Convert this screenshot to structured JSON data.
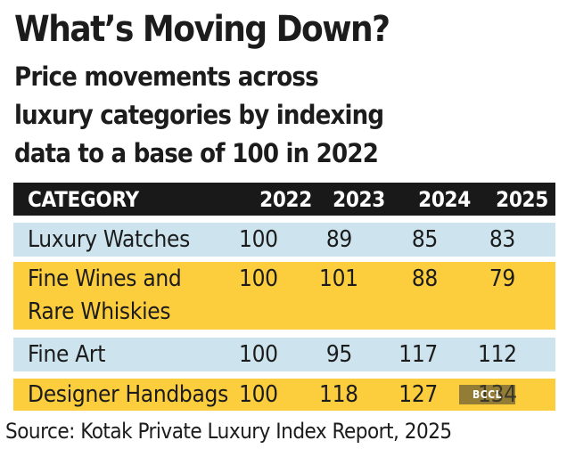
{
  "title": "What’s Moving Down?",
  "subtitle": "Price movements across\nluxury categories by indexing\ndata to a base of 100 in 2022",
  "source": "Source: Kotak Private Luxury Index Report, 2025",
  "watermark": "BCCL",
  "colors": {
    "header_bg": "#191919",
    "row_blue": "#cde4ef",
    "row_yellow": "#fcce3e",
    "text": "#1c1c1c"
  },
  "table": {
    "headers": [
      "CATEGORY",
      "2022",
      "2023",
      "2024",
      "2025"
    ],
    "rows": [
      {
        "category": "Luxury Watches",
        "values": [
          "100",
          "89",
          "85",
          "83"
        ]
      },
      {
        "category": "Fine Wines and\nRare Whiskies",
        "values": [
          "100",
          "101",
          "88",
          "79"
        ]
      },
      {
        "category": "Fine Art",
        "values": [
          "100",
          "95",
          "117",
          "112"
        ]
      },
      {
        "category": "Designer Handbags",
        "values": [
          "100",
          "118",
          "127",
          "134"
        ]
      }
    ]
  },
  "chart_data": {
    "type": "table",
    "title": "What’s Moving Down?",
    "subtitle": "Price movements across luxury categories by indexing data to a base of 100 in 2022",
    "columns": [
      "CATEGORY",
      "2022",
      "2023",
      "2024",
      "2025"
    ],
    "rows": [
      {
        "category": "Luxury Watches",
        "values": [
          100,
          89,
          85,
          83
        ]
      },
      {
        "category": "Fine Wines and Rare Whiskies",
        "values": [
          100,
          101,
          88,
          79
        ]
      },
      {
        "category": "Fine Art",
        "values": [
          100,
          95,
          117,
          112
        ]
      },
      {
        "category": "Designer Handbags",
        "values": [
          100,
          118,
          127,
          134
        ]
      }
    ],
    "base_year": "2022",
    "base_value": 100,
    "source": "Source: Kotak Private Luxury Index Report, 2025"
  }
}
